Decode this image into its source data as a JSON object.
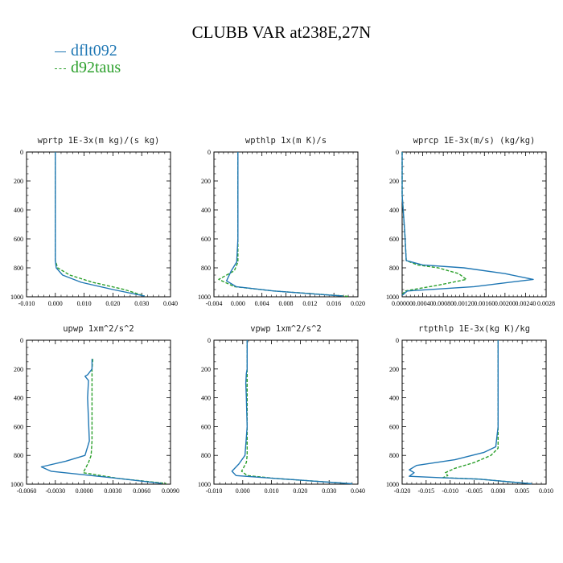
{
  "title": "CLUBB VAR at238E,27N",
  "legend": [
    {
      "name": "dflt092",
      "color": "#1f77b4",
      "dash": "none"
    },
    {
      "name": "d92taus",
      "color": "#2ca02c",
      "dash": "4,2"
    }
  ],
  "chart_data": [
    {
      "type": "line",
      "title": "wprtp  1E-3x(m kg)/(s kg)",
      "xlim": [
        -0.01,
        0.04
      ],
      "ylim": [
        1000,
        0
      ],
      "xticks": [
        "-0.010",
        "0.000",
        "0.010",
        "0.020",
        "0.030",
        "0.040"
      ],
      "yticks": [
        "0",
        "200",
        "400",
        "600",
        "800",
        "1000"
      ],
      "series": [
        {
          "name": "dflt092",
          "x": [
            0,
            0,
            0,
            0,
            0,
            0.0003,
            0.0025,
            0.009,
            0.02,
            0.031
          ],
          "y": [
            0,
            200,
            400,
            600,
            750,
            800,
            850,
            900,
            950,
            995
          ]
        },
        {
          "name": "d92taus",
          "x": [
            0,
            0,
            0,
            0,
            0,
            0.0008,
            0.005,
            0.013,
            0.024,
            0.031
          ],
          "y": [
            0,
            200,
            400,
            600,
            750,
            800,
            850,
            900,
            950,
            995
          ]
        }
      ]
    },
    {
      "type": "line",
      "title": "wpthlp  1x(m K)/s",
      "xlim": [
        -0.004,
        0.02
      ],
      "ylim": [
        1000,
        0
      ],
      "xticks": [
        "-0.004",
        "0.000",
        "0.004",
        "0.008",
        "0.012",
        "0.016",
        "0.020"
      ],
      "yticks": [
        "0",
        "200",
        "400",
        "600",
        "800",
        "1000"
      ],
      "series": [
        {
          "name": "dflt092",
          "x": [
            0,
            0,
            0,
            0,
            -0.0002,
            -0.0011,
            -0.0019,
            -0.0003,
            0.006,
            0.0175
          ],
          "y": [
            0,
            200,
            400,
            600,
            760,
            820,
            890,
            930,
            960,
            995
          ]
        },
        {
          "name": "d92taus",
          "x": [
            0,
            0,
            0,
            0,
            0,
            -0.0006,
            -0.0032,
            -0.0006,
            0.006,
            0.0185
          ],
          "y": [
            0,
            200,
            400,
            600,
            760,
            820,
            880,
            930,
            960,
            997
          ]
        }
      ]
    },
    {
      "type": "line",
      "title": "wprcp  1E-3x(m/s) (kg/kg)",
      "xlim": [
        0,
        0.0028
      ],
      "ylim": [
        1000,
        0
      ],
      "xticks": [
        "0.00000",
        "0.00040",
        "0.00080",
        "0.00120",
        "0.00160",
        "0.00200",
        "0.00240",
        "0.0028"
      ],
      "yticks": [
        "0",
        "200",
        "400",
        "600",
        "800",
        "1000"
      ],
      "series": [
        {
          "name": "dflt092",
          "x": [
            0,
            0,
            2e-05,
            5e-05,
            8e-05,
            0.0004,
            0.0012,
            0.002,
            0.00255,
            0.0014,
            0.0001,
            0
          ],
          "y": [
            0,
            300,
            400,
            550,
            750,
            780,
            800,
            840,
            880,
            930,
            960,
            990
          ]
        },
        {
          "name": "d92taus",
          "x": [
            0,
            0,
            2e-05,
            5e-05,
            8e-05,
            0.0003,
            0.0007,
            0.0011,
            0.00125,
            0.0007,
            5e-05,
            0
          ],
          "y": [
            0,
            300,
            400,
            550,
            750,
            780,
            800,
            840,
            880,
            920,
            960,
            990
          ]
        }
      ]
    },
    {
      "type": "line",
      "title": "upwp  1xm^2/s^2",
      "xlim": [
        -0.0075,
        0.009
      ],
      "ylim": [
        1000,
        0
      ],
      "xticks": [
        "-0.0060",
        "-0.0030",
        "0.0000",
        "0.0030",
        "0.0060",
        "0.0090"
      ],
      "yticks": [
        "0",
        "200",
        "400",
        "600",
        "800",
        "1000"
      ],
      "series": [
        {
          "name": "dflt092",
          "x": [
            0,
            0,
            -0.0005,
            -0.0008,
            -0.0004,
            -0.0005,
            -0.0003,
            -0.0008,
            -0.003,
            -0.0058,
            -0.0047,
            0.003,
            0.008
          ],
          "y": [
            130,
            200,
            240,
            250,
            280,
            400,
            700,
            800,
            840,
            880,
            910,
            960,
            995
          ]
        },
        {
          "name": "d92taus",
          "x": [
            0.0001,
            0,
            0,
            0,
            0,
            0,
            -0.0001,
            -0.0004,
            -0.001,
            0.003,
            0.0085
          ],
          "y": [
            130,
            200,
            300,
            400,
            600,
            700,
            800,
            850,
            920,
            960,
            995
          ]
        }
      ]
    },
    {
      "type": "line",
      "title": "vpwp  1xm^2/s^2",
      "xlim": [
        -0.012,
        0.04
      ],
      "ylim": [
        1000,
        0
      ],
      "xticks": [
        "-0.010",
        "0.000",
        "0.010",
        "0.020",
        "0.030",
        "0.040"
      ],
      "yticks": [
        "0",
        "200",
        "400",
        "600",
        "800",
        "1000"
      ],
      "series": [
        {
          "name": "dflt092",
          "x": [
            0,
            0,
            -0.0003,
            -0.0005,
            -0.0003,
            0,
            -0.0008,
            -0.003,
            -0.0055,
            -0.004,
            0.01,
            0.038
          ],
          "y": [
            0,
            200,
            230,
            300,
            400,
            600,
            800,
            860,
            910,
            940,
            960,
            997
          ]
        },
        {
          "name": "d92taus",
          "x": [
            0,
            0,
            0,
            0,
            0,
            -0.0003,
            -0.002,
            0.0,
            0.01,
            0.038
          ],
          "y": [
            0,
            200,
            400,
            600,
            800,
            850,
            910,
            940,
            960,
            997
          ]
        }
      ]
    },
    {
      "type": "line",
      "title": "rtpthlp  1E-3x(kg K)/kg",
      "xlim": [
        -0.02,
        0.01
      ],
      "ylim": [
        1000,
        0
      ],
      "xticks": [
        "-0.020",
        "-0.015",
        "-0.010",
        "-0.005",
        "0.000",
        "0.005",
        "0.010"
      ],
      "yticks": [
        "0",
        "200",
        "400",
        "600",
        "800",
        "1000"
      ],
      "series": [
        {
          "name": "dflt092",
          "x": [
            0,
            0,
            0,
            0,
            -0.0005,
            -0.003,
            -0.009,
            -0.017,
            -0.0185,
            -0.0175,
            -0.0185,
            -0.012,
            -0.004,
            0.007
          ],
          "y": [
            0,
            200,
            400,
            600,
            740,
            780,
            830,
            870,
            900,
            920,
            945,
            955,
            965,
            997
          ]
        },
        {
          "name": "d92taus",
          "x": [
            0,
            0,
            0,
            0,
            0,
            -0.0015,
            -0.005,
            -0.009,
            -0.011,
            -0.0105,
            -0.0115,
            -0.004,
            0.007
          ],
          "y": [
            0,
            200,
            400,
            600,
            750,
            800,
            850,
            890,
            920,
            940,
            955,
            965,
            997
          ]
        }
      ]
    }
  ]
}
